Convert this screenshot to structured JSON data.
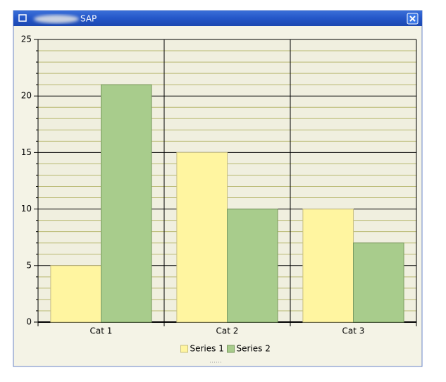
{
  "window_title": "SAP",
  "chart_data": {
    "type": "bar",
    "categories": [
      "Cat 1",
      "Cat 2",
      "Cat 3"
    ],
    "series": [
      {
        "name": "Series 1",
        "color": "#fff5a0",
        "values": [
          5,
          15,
          10
        ]
      },
      {
        "name": "Series 2",
        "color": "#a8cc8c",
        "values": [
          21,
          10,
          7
        ]
      }
    ],
    "ylim": [
      0,
      25
    ],
    "yticks": [
      0,
      5,
      10,
      15,
      20,
      25
    ],
    "yminorticks": [
      1,
      2,
      3,
      4,
      6,
      7,
      8,
      9,
      11,
      12,
      13,
      14,
      16,
      17,
      18,
      19,
      21,
      22,
      23,
      24
    ],
    "grid": true,
    "legend": "bottom"
  }
}
